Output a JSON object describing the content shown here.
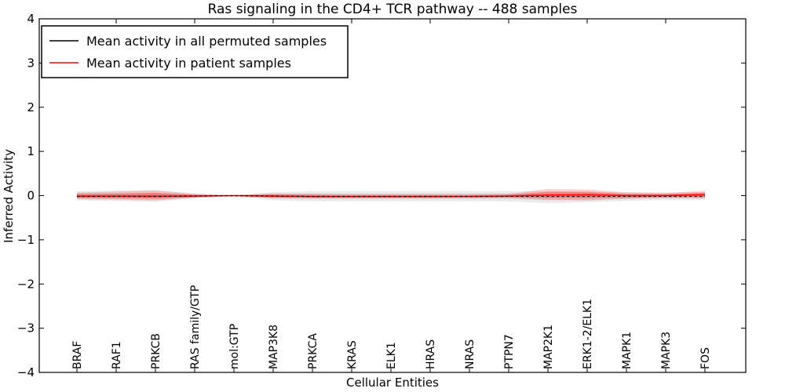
{
  "chart_data": {
    "type": "line",
    "title": "Ras signaling in the CD4+ TCR pathway -- 488 samples",
    "xlabel": "Cellular Entities",
    "ylabel": "Inferred Activity",
    "ylim": [
      -4,
      4
    ],
    "grid": false,
    "legend_position": "upper left",
    "background_color": "#ffffff",
    "axis_color": "#000000",
    "yticks": [
      4,
      3,
      2,
      1,
      0,
      -1,
      -2,
      -3,
      -4
    ],
    "ytick_labels": [
      "4",
      "3",
      "2",
      "1",
      "0",
      "−1",
      "−2",
      "−3",
      "−4"
    ],
    "categories": [
      "BRAF",
      "RAF1",
      "PRKCB",
      "RAS family/GTP",
      "mol:GTP",
      "MAP3K8",
      "PRKCA",
      "KRAS",
      "ELK1",
      "HRAS",
      "NRAS",
      "PTPN7",
      "MAP2K1",
      "ERK1-2/ELK1",
      "MAPK1",
      "MAPK3",
      "FOS"
    ],
    "series": [
      {
        "name": "Mean activity in all permuted samples",
        "color": "#000000",
        "band_color": "#999999",
        "linestyle": "dashed",
        "mean": [
          -0.02,
          -0.02,
          -0.02,
          -0.01,
          0.0,
          -0.01,
          -0.02,
          -0.02,
          -0.02,
          -0.02,
          -0.02,
          -0.02,
          -0.02,
          -0.02,
          -0.02,
          -0.02,
          -0.02
        ],
        "upper": [
          0.1,
          0.11,
          0.12,
          0.05,
          0.01,
          0.08,
          0.1,
          0.1,
          0.1,
          0.1,
          0.1,
          0.1,
          0.1,
          0.09,
          0.08,
          0.07,
          0.08
        ],
        "lower": [
          -0.11,
          -0.12,
          -0.14,
          -0.06,
          -0.01,
          -0.11,
          -0.13,
          -0.13,
          -0.13,
          -0.13,
          -0.13,
          -0.13,
          -0.17,
          -0.15,
          -0.12,
          -0.1,
          -0.1
        ]
      },
      {
        "name": "Mean activity in patient samples",
        "color": "#ff0000",
        "band_color": "#ff0000",
        "linestyle": "solid",
        "mean": [
          -0.01,
          -0.01,
          -0.01,
          -0.01,
          0.0,
          -0.01,
          -0.02,
          -0.02,
          -0.02,
          -0.02,
          -0.02,
          -0.01,
          0.01,
          0.02,
          0.0,
          0.0,
          0.02
        ],
        "upper": [
          0.07,
          0.09,
          0.12,
          0.04,
          0.01,
          0.05,
          0.04,
          0.03,
          0.03,
          0.03,
          0.03,
          0.04,
          0.15,
          0.14,
          0.07,
          0.06,
          0.11
        ],
        "lower": [
          -0.08,
          -0.09,
          -0.11,
          -0.05,
          -0.01,
          -0.06,
          -0.06,
          -0.06,
          -0.06,
          -0.06,
          -0.05,
          -0.05,
          -0.1,
          -0.11,
          -0.07,
          -0.05,
          -0.06
        ]
      }
    ]
  },
  "legend": {
    "entries": [
      {
        "label": "Mean activity in all permuted samples",
        "color": "#000000"
      },
      {
        "label": "Mean activity in patient samples",
        "color": "#ff0000"
      }
    ]
  }
}
